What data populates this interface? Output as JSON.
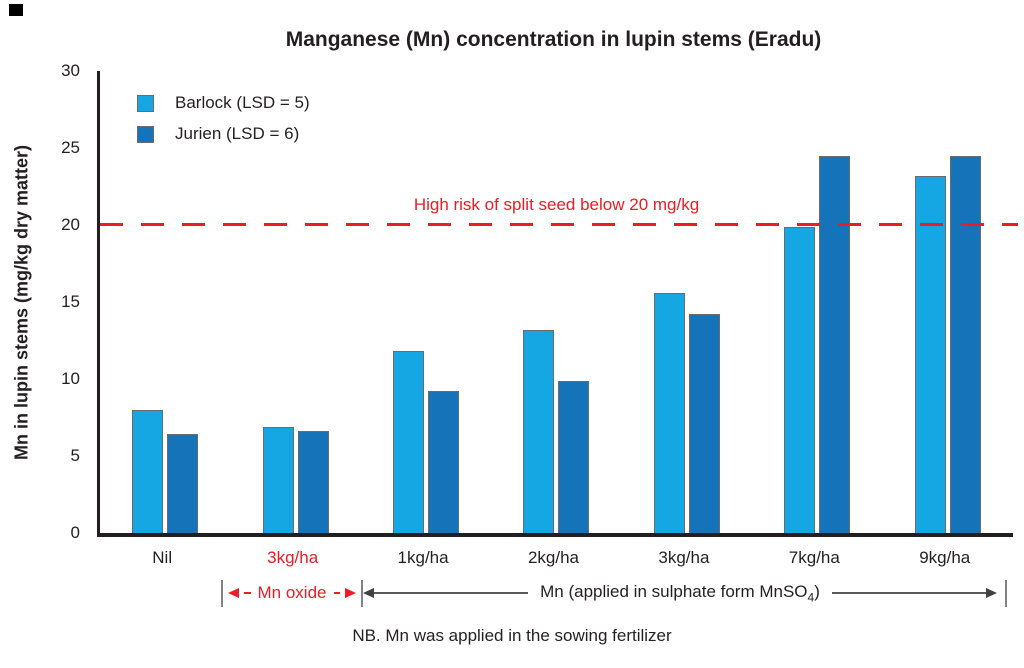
{
  "title": "Manganese (Mn) concentration in lupin stems (Eradu)",
  "y_axis": {
    "label": "Mn in lupin stems (mg/kg dry matter)"
  },
  "legend": [
    {
      "label": "Barlock (LSD = 5)",
      "color": "#14A7E4"
    },
    {
      "label": "Jurien (LSD = 6)",
      "color": "#1573B9"
    }
  ],
  "threshold": {
    "value": 20,
    "label": "High risk of split seed below 20 mg/kg",
    "color": "#EC1C24"
  },
  "annotations": {
    "oxide": {
      "label": "Mn oxide",
      "color": "#EC1C24"
    },
    "sulphate": {
      "pre": "Mn (applied in sulphate form MnSO",
      "sub": "4",
      "post": ")"
    }
  },
  "note": "NB. Mn was applied in the sowing fertilizer",
  "chart_data": {
    "type": "bar",
    "title": "Manganese (Mn) concentration in lupin stems (Eradu)",
    "xlabel": "",
    "ylabel": "Mn in lupin stems (mg/kg dry matter)",
    "ylim": [
      0,
      30
    ],
    "yticks": [
      0,
      5,
      10,
      15,
      20,
      25,
      30
    ],
    "grid": false,
    "legend_position": "top-left-inside",
    "categories": [
      "Nil",
      "3kg/ha",
      "1kg/ha",
      "2kg/ha",
      "3kg/ha",
      "7kg/ha",
      "9kg/ha"
    ],
    "category_label_colors": [
      "#231F20",
      "#EC1C24",
      "#231F20",
      "#231F20",
      "#231F20",
      "#231F20",
      "#231F20"
    ],
    "series": [
      {
        "name": "Barlock (LSD = 5)",
        "color": "#14A7E4",
        "values": [
          8.0,
          6.9,
          11.8,
          13.2,
          15.6,
          19.9,
          23.2
        ]
      },
      {
        "name": "Jurien (LSD = 6)",
        "color": "#1573B9",
        "values": [
          6.4,
          6.6,
          9.2,
          9.9,
          14.2,
          24.5,
          24.5
        ]
      }
    ],
    "threshold_line": {
      "y": 20,
      "style": "dashed",
      "color": "#EC1C24",
      "label": "High risk of split seed below 20 mg/kg"
    },
    "group_annotations": [
      {
        "label": "Mn oxide",
        "categories": [
          "3kg/ha"
        ],
        "color": "#EC1C24"
      },
      {
        "label": "Mn (applied in sulphate form MnSO4)",
        "categories": [
          "1kg/ha",
          "2kg/ha",
          "3kg/ha",
          "7kg/ha",
          "9kg/ha"
        ],
        "color": "#231F20"
      }
    ]
  }
}
